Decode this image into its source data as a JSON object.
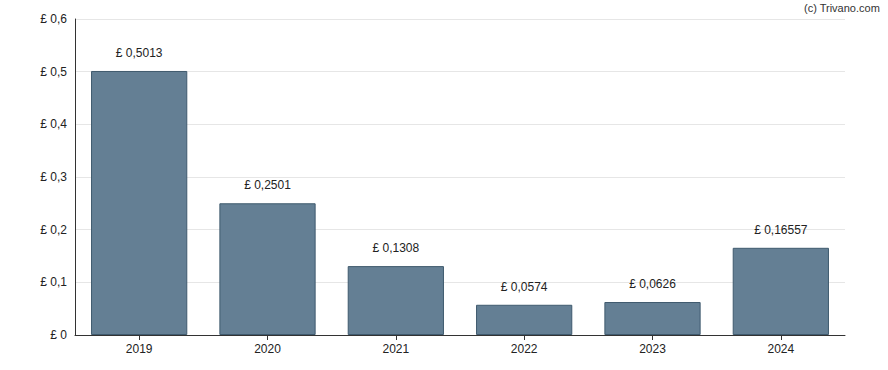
{
  "chart_data": {
    "type": "bar",
    "annotations": [
      "(c) Trivano.com"
    ],
    "categories": [
      "2019",
      "2020",
      "2021",
      "2022",
      "2023",
      "2024"
    ],
    "values": [
      0.5013,
      0.2501,
      0.1308,
      0.0574,
      0.0626,
      0.16557
    ],
    "value_labels": [
      "£ 0,5013",
      "£ 0,2501",
      "£ 0,1308",
      "£ 0,0574",
      "£ 0,0626",
      "£ 0,16557"
    ],
    "data_labels": true,
    "color": "#647f94",
    "ylim": [
      0,
      0.6
    ],
    "yticks": [
      {
        "value": 0,
        "label": "£ 0"
      },
      {
        "value": 0.1,
        "label": "£ 0,1"
      },
      {
        "value": 0.2,
        "label": "£ 0,2"
      },
      {
        "value": 0.3,
        "label": "£ 0,3"
      },
      {
        "value": 0.4,
        "label": "£ 0,4"
      },
      {
        "value": 0.5,
        "label": "£ 0,5"
      },
      {
        "value": 0.6,
        "label": "£ 0,6"
      }
    ],
    "grid": true
  }
}
